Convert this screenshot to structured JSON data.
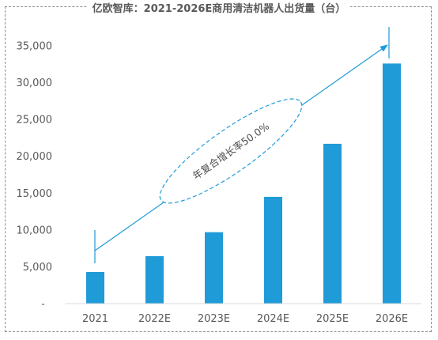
{
  "chart_data": {
    "type": "bar",
    "title": "亿欧智库：2021-2026E商用清洁机器人出货量（台）",
    "categories": [
      "2021",
      "2022E",
      "2023E",
      "2024E",
      "2025E",
      "2026E"
    ],
    "values": [
      4300,
      6450,
      9700,
      14500,
      21700,
      32600
    ],
    "y_ticks": [
      "-",
      "5,000",
      "10,000",
      "15,000",
      "20,000",
      "25,000",
      "30,000",
      "35,000"
    ],
    "ylim": [
      0,
      35000
    ],
    "grid": false,
    "bar_color": "#1f9bd7",
    "arrow_color": "#1f9bd7",
    "annotation": "年复合增长率50.0%"
  }
}
